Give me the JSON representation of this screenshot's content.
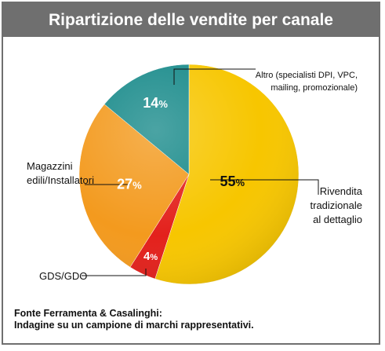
{
  "title": "Ripartizione delle vendite per canale",
  "chart_data": {
    "type": "pie",
    "title": "Ripartizione delle vendite per canale",
    "slices": [
      {
        "label_lines": [
          "Rivendita",
          "tradizionale",
          "al dettaglio"
        ],
        "value": 55,
        "pct_text": "55",
        "color": "#f7c600"
      },
      {
        "label_lines": [
          "GDS/GDO"
        ],
        "value": 4,
        "pct_text": "4",
        "color": "#e3211c"
      },
      {
        "label_lines": [
          "Magazzini",
          "edili/Installatori"
        ],
        "value": 27,
        "pct_text": "27",
        "color": "#f39a1e"
      },
      {
        "label_lines": [
          "Altro (specialisti DPI, VPC,",
          "mailing, promozionale)"
        ],
        "value": 14,
        "pct_text": "14",
        "color": "#188a8a"
      }
    ],
    "percent_sign": "%"
  },
  "source": {
    "line1": "Fonte Ferramenta & Casalinghi:",
    "line2": "Indagine su un campione di marchi rappresentativi."
  }
}
